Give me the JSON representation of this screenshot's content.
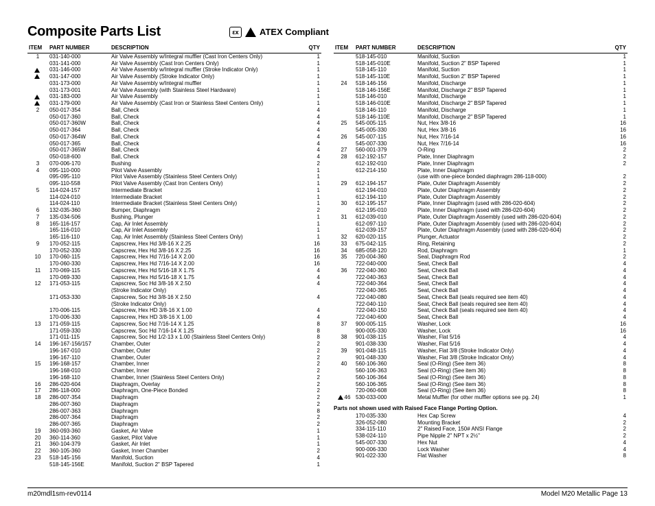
{
  "title": "Composite Parts List",
  "compliant_label": "ATEX Compliant",
  "headers": {
    "item": "ITEM",
    "pn": "PART NUMBER",
    "desc": "DESCRIPTION",
    "qty": "QTY"
  },
  "footer_left": "m20mdl1sm-rev0114",
  "footer_right": "Model M20 Metallic Page 13",
  "section_note": "Parts not shown used with Raised Face Flange Porting Option.",
  "left_rows": [
    {
      "item": "1",
      "pn": "031-140-000",
      "desc": "Air Valve Assembly w/Integral muffler (Cast Iron Centers Only)",
      "qty": "1"
    },
    {
      "item": "",
      "pn": "031-141-000",
      "desc": "Air Valve Assembly (Cast Iron Centers Only)",
      "qty": "1"
    },
    {
      "item": "",
      "pn": "031-146-000",
      "desc": "Air Valve Assembly w/Integral muffler (Stroke Indicator Only)",
      "qty": "1",
      "warn": true
    },
    {
      "item": "",
      "pn": "031-147-000",
      "desc": "Air Valve Assembly (Stroke Indicator Only)",
      "qty": "1",
      "warn": true
    },
    {
      "item": "",
      "pn": "031-173-000",
      "desc": "Air Valve Assembly w/Integral muffler",
      "qty": "1"
    },
    {
      "item": "",
      "pn": "031-173-001",
      "desc": "Air Valve Assembly (with Stainless Steel Hardware)",
      "qty": "1"
    },
    {
      "item": "",
      "pn": "031-183-000",
      "desc": "Air Valve Assembly",
      "qty": "1",
      "warn": true
    },
    {
      "item": "",
      "pn": "031-179-000",
      "desc": "Air Valve Assembly (Cast Iron or Stainless Steel Centers Only)",
      "qty": "1",
      "warn": true
    },
    {
      "item": "2",
      "pn": "050-017-354",
      "desc": "Ball, Check",
      "qty": "4"
    },
    {
      "item": "",
      "pn": "050-017-360",
      "desc": "Ball, Check",
      "qty": "4"
    },
    {
      "item": "",
      "pn": "050-017-360W",
      "desc": "Ball, Check",
      "qty": "4"
    },
    {
      "item": "",
      "pn": "050-017-364",
      "desc": "Ball, Check",
      "qty": "4"
    },
    {
      "item": "",
      "pn": "050-017-364W",
      "desc": "Ball, Check",
      "qty": "4"
    },
    {
      "item": "",
      "pn": "050-017-365",
      "desc": "Ball, Check",
      "qty": "4"
    },
    {
      "item": "",
      "pn": "050-017-365W",
      "desc": "Ball, Check",
      "qty": "4"
    },
    {
      "item": "",
      "pn": "050-018-600",
      "desc": "Ball, Check",
      "qty": "4"
    },
    {
      "item": "3",
      "pn": "070-006-170",
      "desc": "Bushing",
      "qty": "2"
    },
    {
      "item": "4",
      "pn": "095-110-000",
      "desc": "Pilot Valve Assembly",
      "qty": "1"
    },
    {
      "item": "",
      "pn": "095-095-110",
      "desc": "Pilot Valve Assembly (Stainless Steel Centers Only)",
      "qty": "1"
    },
    {
      "item": "",
      "pn": "095-110-558",
      "desc": "Pilot Valve Assembly (Cast Iron Centers Only)",
      "qty": "1"
    },
    {
      "item": "5",
      "pn": "114-024-157",
      "desc": "Intermediate Bracket",
      "qty": "1"
    },
    {
      "item": "",
      "pn": "114-024-010",
      "desc": "Intermediate Bracket",
      "qty": "1"
    },
    {
      "item": "",
      "pn": "114-024-110",
      "desc": "Intermediate Bracket (Stainless Steel Centers Only)",
      "qty": "1"
    },
    {
      "item": "6",
      "pn": "132-035-360",
      "desc": "Bumper, Diaphragm",
      "qty": "2"
    },
    {
      "item": "7",
      "pn": "135-034-506",
      "desc": "Bushing, Plunger",
      "qty": "1"
    },
    {
      "item": "8",
      "pn": "165-116-157",
      "desc": "Cap, Air Inlet Assembly",
      "qty": "1"
    },
    {
      "item": "",
      "pn": "165-116-010",
      "desc": "Cap, Air Inlet Assembly",
      "qty": "1"
    },
    {
      "item": "",
      "pn": "165-116-110",
      "desc": "Cap, Air Inlet Assembly (Stainless Steel Centers Only)",
      "qty": "1"
    },
    {
      "item": "9",
      "pn": "170-052-115",
      "desc": "Capscrew, Hex Hd 3/8-16 X 2.25",
      "qty": "16"
    },
    {
      "item": "",
      "pn": "170-052-330",
      "desc": "Capscrew, Hex Hd 3/8-16 X 2.25",
      "qty": "16"
    },
    {
      "item": "10",
      "pn": "170-060-115",
      "desc": "Capscrew, Hex Hd 7/16-14 X 2.00",
      "qty": "16"
    },
    {
      "item": "",
      "pn": "170-060-330",
      "desc": "Capscrew, Hex Hd 7/16-14 X 2.00",
      "qty": "16"
    },
    {
      "item": "11",
      "pn": "170-069-115",
      "desc": "Capscrew, Hex Hd 5/16-18 X 1.75",
      "qty": "4"
    },
    {
      "item": "",
      "pn": "170-069-330",
      "desc": "Capscrew, Hex Hd 5/16-18 X 1.75",
      "qty": "4"
    },
    {
      "item": "12",
      "pn": "171-053-115",
      "desc": "Capscrew, Soc Hd 3/8-16 X 2.50",
      "qty": "4"
    },
    {
      "item": "",
      "pn": "",
      "desc": "(Stroke Indicator Only)",
      "qty": ""
    },
    {
      "item": "",
      "pn": "171-053-330",
      "desc": "Capscrew, Soc Hd 3/8-16 X 2.50",
      "qty": "4"
    },
    {
      "item": "",
      "pn": "",
      "desc": "(Stroke Indicator Only)",
      "qty": ""
    },
    {
      "item": "",
      "pn": "170-006-115",
      "desc": "Capscrew, Hex HD 3/8-16 X 1.00",
      "qty": "4"
    },
    {
      "item": "",
      "pn": "170-006-330",
      "desc": "Capscrew, Hex HD 3/8-16 X 1.00",
      "qty": "4"
    },
    {
      "item": "13",
      "pn": "171-059-115",
      "desc": "Capscrew, Soc Hd 7/16-14 X 1.25",
      "qty": "8"
    },
    {
      "item": "",
      "pn": "171-059-330",
      "desc": "Capscrew, Soc Hd 7/16-14 X 1.25",
      "qty": "8"
    },
    {
      "item": "",
      "pn": "171-011-115",
      "desc": "Capscrew, Soc Hd 1/2-13 x 1.00 (Stainless Steel Centers Only)",
      "qty": "8"
    },
    {
      "item": "14",
      "pn": "196-167-156/157",
      "desc": "Chamber, Outer",
      "qty": "2"
    },
    {
      "item": "",
      "pn": "196-167-010",
      "desc": "Chamber, Outer",
      "qty": "2"
    },
    {
      "item": "",
      "pn": "196-167-110",
      "desc": "Chamber, Outer",
      "qty": "2"
    },
    {
      "item": "15",
      "pn": "196-168-157",
      "desc": "Chamber, Inner",
      "qty": "2"
    },
    {
      "item": "",
      "pn": "196-168-010",
      "desc": "Chamber, Inner",
      "qty": "2"
    },
    {
      "item": "",
      "pn": "196-168-110",
      "desc": "Chamber, Inner (Stainless Steel Centers Only)",
      "qty": "2"
    },
    {
      "item": "16",
      "pn": "286-020-604",
      "desc": "Diaphragm, Overlay",
      "qty": "2"
    },
    {
      "item": "17",
      "pn": "286-118-000",
      "desc": "Diaphragm, One-Piece Bonded",
      "qty": "2"
    },
    {
      "item": "18",
      "pn": "286-007-354",
      "desc": "Diaphragm",
      "qty": "2"
    },
    {
      "item": "",
      "pn": "286-007-360",
      "desc": "Diaphragm",
      "qty": "2"
    },
    {
      "item": "",
      "pn": "286-007-363",
      "desc": "Diaphragm",
      "qty": "8"
    },
    {
      "item": "",
      "pn": "286-007-364",
      "desc": "Diaphragm",
      "qty": "2"
    },
    {
      "item": "",
      "pn": "286-007-365",
      "desc": "Diaphragm",
      "qty": "2"
    },
    {
      "item": "19",
      "pn": "360-093-360",
      "desc": "Gasket, Air Valve",
      "qty": "1"
    },
    {
      "item": "20",
      "pn": "360-114-360",
      "desc": "Gasket, Pilot Valve",
      "qty": "1"
    },
    {
      "item": "21",
      "pn": "360-104-379",
      "desc": "Gasket, Air Inlet",
      "qty": "1"
    },
    {
      "item": "22",
      "pn": "360-105-360",
      "desc": "Gasket, Inner Chamber",
      "qty": "2"
    },
    {
      "item": "23",
      "pn": "518-145-156",
      "desc": "Manifold, Suction",
      "qty": "4"
    },
    {
      "item": "",
      "pn": "518-145-156E",
      "desc": "Manifold, Suction 2\" BSP Tapered",
      "qty": "1"
    }
  ],
  "right_rows": [
    {
      "item": "",
      "pn": "518-145-010",
      "desc": "Manifold, Suction",
      "qty": "1"
    },
    {
      "item": "",
      "pn": "518-145-010E",
      "desc": "Manifold, Suction 2\" BSP Tapered",
      "qty": "1"
    },
    {
      "item": "",
      "pn": "518-145-110",
      "desc": "Manifold, Suction",
      "qty": "1"
    },
    {
      "item": "",
      "pn": "518-145-110E",
      "desc": "Manifold, Suction 2\" BSP Tapered",
      "qty": "1"
    },
    {
      "item": "24",
      "pn": "518-146-156",
      "desc": "Manifold, Discharge",
      "qty": "1"
    },
    {
      "item": "",
      "pn": "518-146-156E",
      "desc": "Manifold, Discharge 2\" BSP Tapered",
      "qty": "1"
    },
    {
      "item": "",
      "pn": "518-146-010",
      "desc": "Manifold, Discharge",
      "qty": "1"
    },
    {
      "item": "",
      "pn": "518-146-010E",
      "desc": "Manifold, Discharge 2\" BSP Tapered",
      "qty": "1"
    },
    {
      "item": "",
      "pn": "518-146-110",
      "desc": "Manifold, Discharge",
      "qty": "1"
    },
    {
      "item": "",
      "pn": "518-146-110E",
      "desc": "Manifold, Discharge 2\" BSP Tapered",
      "qty": "1"
    },
    {
      "item": "25",
      "pn": "545-005-115",
      "desc": "Nut, Hex 3/8-16",
      "qty": "16"
    },
    {
      "item": "",
      "pn": "545-005-330",
      "desc": "Nut, Hex 3/8-16",
      "qty": "16"
    },
    {
      "item": "26",
      "pn": "545-007-115",
      "desc": "Nut, Hex 7/16-14",
      "qty": "16"
    },
    {
      "item": "",
      "pn": "545-007-330",
      "desc": "Nut, Hex 7/16-14",
      "qty": "16"
    },
    {
      "item": "27",
      "pn": "560-001-379",
      "desc": "O-Ring",
      "qty": "2"
    },
    {
      "item": "28",
      "pn": "612-192-157",
      "desc": "Plate, Inner Diaphragm",
      "qty": "2"
    },
    {
      "item": "",
      "pn": "612-192-010",
      "desc": "Plate, Inner Diaphragm",
      "qty": "2"
    },
    {
      "item": "",
      "pn": "612-214-150",
      "desc": "Plate, Inner Diaphragm",
      "qty": ""
    },
    {
      "item": "",
      "pn": "",
      "desc": "(use with one-piece bonded diaphragm 286-118-000)",
      "qty": "2"
    },
    {
      "item": "29",
      "pn": "612-194-157",
      "desc": "Plate, Outer Diaphragm Assembly",
      "qty": "2"
    },
    {
      "item": "",
      "pn": "612-194-010",
      "desc": "Plate, Outer Diaphragm Assembly",
      "qty": "2"
    },
    {
      "item": "",
      "pn": "612-194-110",
      "desc": "Plate, Outer Diaphragm Assembly",
      "qty": "2"
    },
    {
      "item": "30",
      "pn": "612-195-157",
      "desc": "Plate, Inner Diaphragm (used with 286-020-604)",
      "qty": "2"
    },
    {
      "item": "",
      "pn": "612-195-010",
      "desc": "Plate, Inner Diaphragm (used with 286-020-604)",
      "qty": "2"
    },
    {
      "item": "31",
      "pn": "612-039-010",
      "desc": "Plate, Outer Diaphragm Assembly (used with 286-020-604)",
      "qty": "2"
    },
    {
      "item": "",
      "pn": "612-097-110",
      "desc": "Plate, Outer Diaphragm Assembly (used with 286-020-604)",
      "qty": "2"
    },
    {
      "item": "",
      "pn": "612-039-157",
      "desc": "Plate, Outer Diaphragm Assembly (used with 286-020-604)",
      "qty": "2"
    },
    {
      "item": "32",
      "pn": "620-020-115",
      "desc": "Plunger, Actuator",
      "qty": "2"
    },
    {
      "item": "33",
      "pn": "675-042-115",
      "desc": "Ring, Retaining",
      "qty": "2"
    },
    {
      "item": "34",
      "pn": "685-058-120",
      "desc": "Rod, Diaphragm",
      "qty": "1"
    },
    {
      "item": "35",
      "pn": "720-004-360",
      "desc": "Seal, Diaphragm Rod",
      "qty": "2"
    },
    {
      "item": "",
      "pn": "722-040-000",
      "desc": "Seat, Check Ball",
      "qty": "4"
    },
    {
      "item": "36",
      "pn": "722-040-360",
      "desc": "Seat, Check Ball",
      "qty": "4"
    },
    {
      "item": "",
      "pn": "722-040-363",
      "desc": "Seat, Check Ball",
      "qty": "4"
    },
    {
      "item": "",
      "pn": "722-040-364",
      "desc": "Seat, Check Ball",
      "qty": "4"
    },
    {
      "item": "",
      "pn": "722-040-365",
      "desc": "Seat, Check Ball",
      "qty": "4"
    },
    {
      "item": "",
      "pn": "722-040-080",
      "desc": "Seat, Check Ball (seals required see item 40)",
      "qty": "4"
    },
    {
      "item": "",
      "pn": "722-040-110",
      "desc": "Seat, Check Ball (seals required see item 40)",
      "qty": "4"
    },
    {
      "item": "",
      "pn": "722-040-150",
      "desc": "Seat, Check Ball (seals required see item 40)",
      "qty": "4"
    },
    {
      "item": "",
      "pn": "722-040-600",
      "desc": "Seat, Check Ball",
      "qty": "4"
    },
    {
      "item": "37",
      "pn": "900-005-115",
      "desc": "Washer, Lock",
      "qty": "16"
    },
    {
      "item": "",
      "pn": "900-005-330",
      "desc": "Washer, Lock",
      "qty": "16"
    },
    {
      "item": "38",
      "pn": "901-038-115",
      "desc": "Washer, Flat 5/16",
      "qty": "4"
    },
    {
      "item": "",
      "pn": "901-038-330",
      "desc": "Washer, Flat 5/16",
      "qty": "4"
    },
    {
      "item": "39",
      "pn": "901-048-115",
      "desc": "Washer, Flat 3/8 (Stroke Indicator Only)",
      "qty": "4"
    },
    {
      "item": "",
      "pn": "901-048-330",
      "desc": "Washer, Flat 3/8 (Stroke Indicator Only)",
      "qty": "4"
    },
    {
      "item": "40",
      "pn": "560-106-360",
      "desc": "Seal (O-Ring) (See item 36)",
      "qty": "8"
    },
    {
      "item": "",
      "pn": "560-106-363",
      "desc": "Seal (O-Ring) (See item 36)",
      "qty": "8"
    },
    {
      "item": "",
      "pn": "560-106-364",
      "desc": "Seal (O-Ring) (See item 36)",
      "qty": "8"
    },
    {
      "item": "",
      "pn": "560-106-365",
      "desc": "Seal (O-Ring) (See item 36)",
      "qty": "8"
    },
    {
      "item": "",
      "pn": "720-060-608",
      "desc": "Seal (O-Ring) (See item 36)",
      "qty": "8"
    },
    {
      "item": "46",
      "pn": "530-033-000",
      "desc": "Metal Muffler (for other muffler options see pg. 24)",
      "qty": "1",
      "warn": true
    }
  ],
  "extra_rows": [
    {
      "item": "",
      "pn": "170-035-330",
      "desc": "Hex Cap Screw",
      "qty": "4"
    },
    {
      "item": "",
      "pn": "326-052-080",
      "desc": "Mounting Bracket",
      "qty": "2"
    },
    {
      "item": "",
      "pn": "334-115-110",
      "desc": "2\" Raised Face, 150# ANSI Flange",
      "qty": "2"
    },
    {
      "item": "",
      "pn": "538-024-110",
      "desc": "Pipe Nipple 2\" NPT x 2½\"",
      "qty": "2"
    },
    {
      "item": "",
      "pn": "545-007-330",
      "desc": "Hex Nut",
      "qty": "4"
    },
    {
      "item": "",
      "pn": "900-006-330",
      "desc": "Lock Washer",
      "qty": "4"
    },
    {
      "item": "",
      "pn": "901-022-330",
      "desc": "Flat Washer",
      "qty": "8"
    }
  ]
}
